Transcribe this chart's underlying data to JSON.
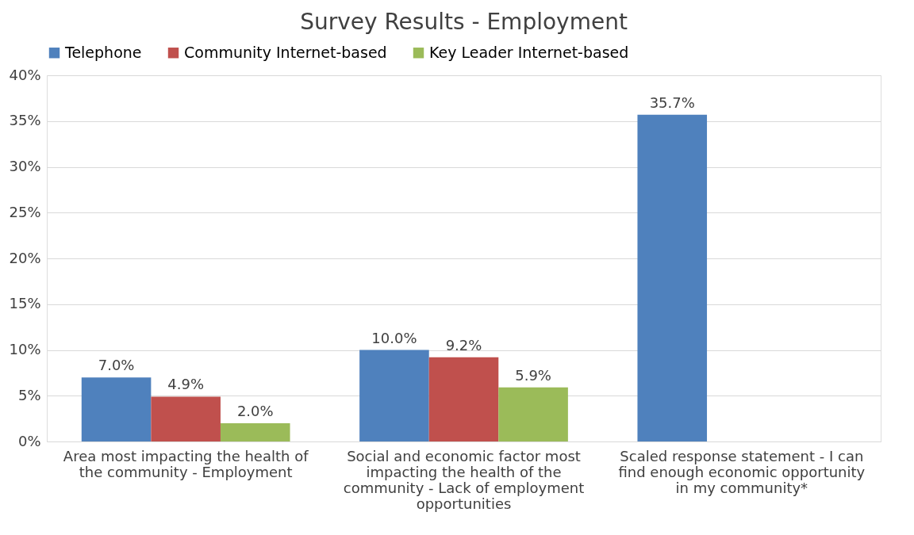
{
  "chart_data": {
    "type": "bar",
    "title": "Survey Results - Employment",
    "categories": [
      "Area most impacting the health of the community - Employment",
      "Social and economic factor most impacting the health of the community - Lack of employment opportunities",
      "Scaled response statement - I can find enough economic opportunity in my community*"
    ],
    "series": [
      {
        "name": "Telephone",
        "color": "#4f81bd",
        "values": [
          7.0,
          10.0,
          35.7
        ],
        "value_labels": [
          "7.0%",
          "10.0%",
          "35.7%"
        ]
      },
      {
        "name": "Community Internet-based",
        "color": "#c0504d",
        "values": [
          4.9,
          9.2,
          null
        ],
        "value_labels": [
          "4.9%",
          "9.2%",
          null
        ]
      },
      {
        "name": "Key Leader Internet-based",
        "color": "#9bbb59",
        "values": [
          2.0,
          5.9,
          null
        ],
        "value_labels": [
          "2.0%",
          "5.9%",
          null
        ]
      }
    ],
    "ylim": [
      0,
      40
    ],
    "yticks": [
      {
        "value": 0,
        "label": "0%"
      },
      {
        "value": 5,
        "label": "5%"
      },
      {
        "value": 10,
        "label": "10%"
      },
      {
        "value": 15,
        "label": "15%"
      },
      {
        "value": 20,
        "label": "20%"
      },
      {
        "value": 25,
        "label": "25%"
      },
      {
        "value": 30,
        "label": "30%"
      },
      {
        "value": 35,
        "label": "35%"
      },
      {
        "value": 40,
        "label": "40%"
      }
    ],
    "grid": "y",
    "legend": "top"
  }
}
